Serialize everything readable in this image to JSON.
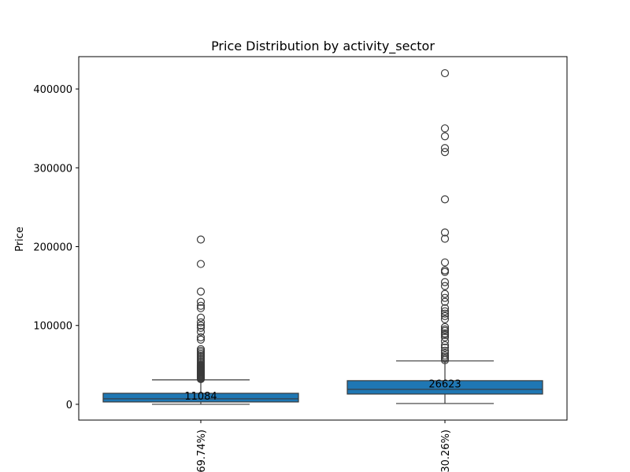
{
  "chart_data": {
    "type": "box",
    "title": "Price Distribution by activity_sector",
    "xlabel": "",
    "ylabel": "Price",
    "ylim": [
      -20000,
      441000
    ],
    "yticks": [
      0,
      100000,
      200000,
      300000,
      400000
    ],
    "ytick_labels": [
      "0",
      "100000",
      "200000",
      "300000",
      "400000"
    ],
    "grid": false,
    "box_color": "#1f77b4",
    "line_color": "#3a3a3a",
    "categories": [
      "69.74%)",
      "30.26%)"
    ],
    "boxes": [
      {
        "category": "69.74%)",
        "whisker_low": 0,
        "q1": 3000,
        "median": 7000,
        "q3": 14000,
        "whisker_high": 31000,
        "mean_label": "11084",
        "mean": 11084,
        "outliers": [
          32000,
          33000,
          34000,
          35000,
          36000,
          37000,
          38000,
          39000,
          40000,
          41000,
          42000,
          43000,
          44000,
          45000,
          46000,
          47000,
          48000,
          49000,
          50000,
          52000,
          54000,
          56000,
          58000,
          60000,
          62000,
          64000,
          66000,
          68000,
          70000,
          82000,
          85000,
          92000,
          97000,
          100000,
          104000,
          110000,
          122000,
          125000,
          130000,
          143000,
          178000,
          209000
        ]
      },
      {
        "category": "30.26%)",
        "whisker_low": 1000,
        "q1": 13000,
        "median": 19000,
        "q3": 30000,
        "whisker_high": 55000,
        "mean_label": "26623",
        "mean": 26623,
        "outliers": [
          56000,
          58000,
          60000,
          62000,
          65000,
          68000,
          72000,
          75000,
          80000,
          85000,
          88000,
          90000,
          93000,
          95000,
          98000,
          108000,
          112000,
          115000,
          118000,
          122000,
          130000,
          135000,
          140000,
          150000,
          155000,
          168000,
          170000,
          180000,
          210000,
          218000,
          260000,
          320000,
          325000,
          340000,
          350000,
          420000
        ]
      }
    ]
  }
}
